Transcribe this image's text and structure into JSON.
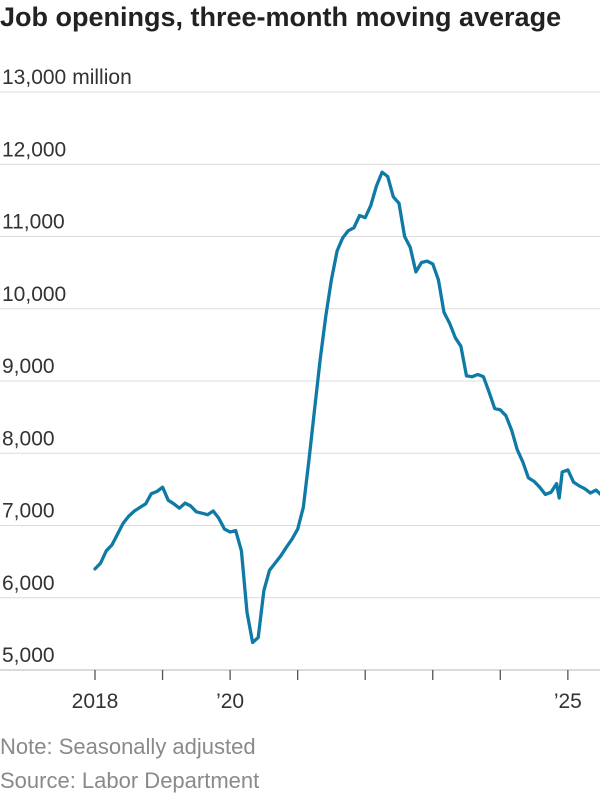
{
  "chart_data": {
    "type": "line",
    "title": "Job openings, three-month moving average",
    "y_unit": "million",
    "ylim": [
      5000,
      13000
    ],
    "yticks": [
      {
        "value": 13000,
        "label": "13,000"
      },
      {
        "value": 12000,
        "label": "12,000"
      },
      {
        "value": 11000,
        "label": "11,000"
      },
      {
        "value": 10000,
        "label": "10,000"
      },
      {
        "value": 9000,
        "label": "9,000"
      },
      {
        "value": 8000,
        "label": "8,000"
      },
      {
        "value": 7000,
        "label": "7,000"
      },
      {
        "value": 6000,
        "label": "6,000"
      },
      {
        "value": 5000,
        "label": "5,000"
      }
    ],
    "xlim": [
      "2018-01",
      "2025-06"
    ],
    "xticks": [
      {
        "value": "2018-01",
        "label": "2018"
      },
      {
        "value": "2019-01",
        "label": ""
      },
      {
        "value": "2020-01",
        "label": "’20"
      },
      {
        "value": "2021-01",
        "label": ""
      },
      {
        "value": "2022-01",
        "label": ""
      },
      {
        "value": "2023-01",
        "label": ""
      },
      {
        "value": "2024-01",
        "label": ""
      },
      {
        "value": "2025-01",
        "label": "’25"
      }
    ],
    "grid": true,
    "line_color": "#0f7aa6",
    "series": [
      {
        "values": [
          [
            "2018-01",
            6400
          ],
          [
            "2018-02",
            6480
          ],
          [
            "2018-03",
            6650
          ],
          [
            "2018-04",
            6730
          ],
          [
            "2018-05",
            6880
          ],
          [
            "2018-06",
            7030
          ],
          [
            "2018-07",
            7130
          ],
          [
            "2018-08",
            7200
          ],
          [
            "2018-09",
            7250
          ],
          [
            "2018-10",
            7300
          ],
          [
            "2018-11",
            7440
          ],
          [
            "2018-12",
            7470
          ],
          [
            "2019-01",
            7530
          ],
          [
            "2019-02",
            7350
          ],
          [
            "2019-03",
            7300
          ],
          [
            "2019-04",
            7240
          ],
          [
            "2019-05",
            7310
          ],
          [
            "2019-06",
            7270
          ],
          [
            "2019-07",
            7190
          ],
          [
            "2019-08",
            7170
          ],
          [
            "2019-09",
            7150
          ],
          [
            "2019-10",
            7200
          ],
          [
            "2019-11",
            7100
          ],
          [
            "2019-12",
            6950
          ],
          [
            "2020-01",
            6910
          ],
          [
            "2020-02",
            6930
          ],
          [
            "2020-03",
            6650
          ],
          [
            "2020-04",
            5800
          ],
          [
            "2020-05",
            5380
          ],
          [
            "2020-06",
            5450
          ],
          [
            "2020-07",
            6100
          ],
          [
            "2020-08",
            6380
          ],
          [
            "2020-09",
            6480
          ],
          [
            "2020-10",
            6580
          ],
          [
            "2020-11",
            6700
          ],
          [
            "2020-12",
            6810
          ],
          [
            "2021-01",
            6950
          ],
          [
            "2021-02",
            7250
          ],
          [
            "2021-03",
            7900
          ],
          [
            "2021-04",
            8600
          ],
          [
            "2021-05",
            9300
          ],
          [
            "2021-06",
            9900
          ],
          [
            "2021-07",
            10400
          ],
          [
            "2021-08",
            10800
          ],
          [
            "2021-09",
            10980
          ],
          [
            "2021-10",
            11080
          ],
          [
            "2021-11",
            11120
          ],
          [
            "2021-12",
            11290
          ],
          [
            "2022-01",
            11260
          ],
          [
            "2022-02",
            11430
          ],
          [
            "2022-03",
            11700
          ],
          [
            "2022-04",
            11890
          ],
          [
            "2022-05",
            11830
          ],
          [
            "2022-06",
            11550
          ],
          [
            "2022-07",
            11460
          ],
          [
            "2022-08",
            11000
          ],
          [
            "2022-09",
            10850
          ],
          [
            "2022-10",
            10510
          ],
          [
            "2022-11",
            10640
          ],
          [
            "2022-12",
            10660
          ],
          [
            "2023-01",
            10620
          ],
          [
            "2023-02",
            10400
          ],
          [
            "2023-03",
            9950
          ],
          [
            "2023-04",
            9800
          ],
          [
            "2023-05",
            9600
          ],
          [
            "2023-06",
            9480
          ],
          [
            "2023-07",
            9070
          ],
          [
            "2023-08",
            9060
          ],
          [
            "2023-09",
            9090
          ],
          [
            "2023-10",
            9060
          ],
          [
            "2023-11",
            8850
          ],
          [
            "2023-12",
            8620
          ],
          [
            "2024-01",
            8600
          ],
          [
            "2024-02",
            8520
          ],
          [
            "2024-03",
            8320
          ],
          [
            "2024-04",
            8050
          ],
          [
            "2024-05",
            7880
          ],
          [
            "2024-06",
            7660
          ],
          [
            "2024-07",
            7610
          ],
          [
            "2024-08",
            7530
          ],
          [
            "2024-09",
            7430
          ],
          [
            "2024-10",
            7460
          ],
          [
            "2024-11",
            7580
          ],
          [
            "2024-11-15",
            7380
          ],
          [
            "2024-12",
            7740
          ],
          [
            "2025-01",
            7770
          ],
          [
            "2025-02",
            7600
          ],
          [
            "2025-03",
            7550
          ],
          [
            "2025-04",
            7510
          ],
          [
            "2025-05",
            7450
          ],
          [
            "2025-06",
            7490
          ],
          [
            "2025-07",
            7420
          ]
        ]
      }
    ]
  },
  "footer": {
    "note": "Note: Seasonally adjusted",
    "source": "Source: Labor Department"
  }
}
